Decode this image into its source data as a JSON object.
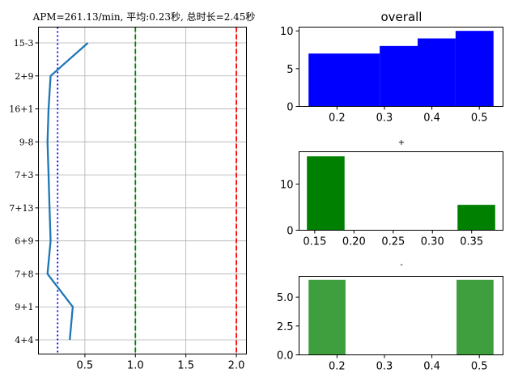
{
  "chart_data": [
    {
      "type": "line",
      "title": "APM=261.13/min, 平均:0.23秒, 总时长=2.45秒",
      "categories": [
        "4+4",
        "9+1",
        "7+8",
        "6+9",
        "7+13",
        "7+3",
        "9-8",
        "16+1",
        "2+9",
        "15-3"
      ],
      "values": [
        0.35,
        0.38,
        0.13,
        0.16,
        0.15,
        0.14,
        0.13,
        0.14,
        0.16,
        0.53
      ],
      "xlim": [
        0.04,
        2.1
      ],
      "xticks": [
        "0.5",
        "1.0",
        "1.5",
        "2.0"
      ],
      "xtick_values": [
        0.5,
        1.0,
        1.5,
        2.0
      ],
      "grid": true,
      "reference_lines": [
        {
          "x": 0.23,
          "style": "dotted",
          "color": "#0000ff"
        },
        {
          "x": 1.0,
          "style": "dashed",
          "color": "#008000"
        },
        {
          "x": 2.0,
          "style": "dashed",
          "color": "#ff0000"
        }
      ],
      "line_color": "#1f77b4"
    },
    {
      "type": "bar",
      "title": "overall",
      "bins": [
        [
          0.14,
          0.29
        ],
        [
          0.29,
          0.37
        ],
        [
          0.37,
          0.45
        ],
        [
          0.45,
          0.53
        ]
      ],
      "values": [
        7,
        8,
        9,
        10
      ],
      "xlim": [
        0.12,
        0.55
      ],
      "ylim": [
        0,
        10.5
      ],
      "xticks": [
        "0.2",
        "0.3",
        "0.4",
        "0.5"
      ],
      "xtick_values": [
        0.2,
        0.3,
        0.4,
        0.5
      ],
      "yticks": [
        "0",
        "5",
        "10"
      ],
      "ytick_values": [
        0,
        5,
        10
      ],
      "color": "#0000ff"
    },
    {
      "type": "bar",
      "title": "+",
      "bins": [
        [
          0.14,
          0.188
        ],
        [
          0.188,
          0.236
        ],
        [
          0.236,
          0.284
        ],
        [
          0.284,
          0.332
        ],
        [
          0.332,
          0.38
        ]
      ],
      "values": [
        16,
        0,
        0,
        0,
        5.5
      ],
      "xlim": [
        0.13,
        0.39
      ],
      "ylim": [
        0,
        17
      ],
      "xticks": [
        "0.15",
        "0.20",
        "0.25",
        "0.30",
        "0.35"
      ],
      "xtick_values": [
        0.15,
        0.2,
        0.25,
        0.3,
        0.35
      ],
      "yticks": [
        "0",
        "10"
      ],
      "ytick_values": [
        0,
        10
      ],
      "color": "#008000"
    },
    {
      "type": "bar",
      "title": "-",
      "bins": [
        [
          0.14,
          0.218
        ],
        [
          0.218,
          0.296
        ],
        [
          0.296,
          0.374
        ],
        [
          0.374,
          0.452
        ],
        [
          0.452,
          0.53
        ]
      ],
      "values": [
        6.5,
        0,
        0,
        0,
        6.5
      ],
      "xlim": [
        0.12,
        0.55
      ],
      "ylim": [
        0,
        6.8
      ],
      "xticks": [
        "0.2",
        "0.3",
        "0.4",
        "0.5"
      ],
      "xtick_values": [
        0.2,
        0.3,
        0.4,
        0.5
      ],
      "yticks": [
        "0.0",
        "2.5",
        "5.0"
      ],
      "ytick_values": [
        0,
        2.5,
        5.0
      ],
      "color": "#3f9f3f"
    }
  ]
}
